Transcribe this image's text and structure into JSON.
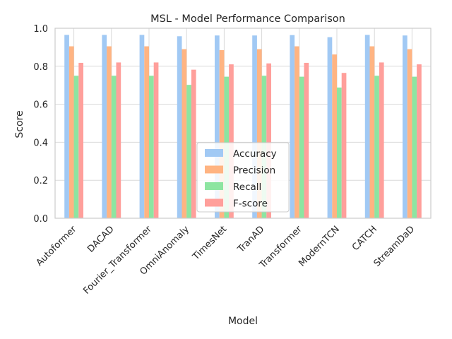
{
  "chart_data": {
    "type": "bar",
    "title": "MSL - Model Performance Comparison",
    "xlabel": "Model",
    "ylabel": "Score",
    "ylim": [
      0,
      1.0
    ],
    "yticks": [
      "0.0",
      "0.2",
      "0.4",
      "0.6",
      "0.8",
      "1.0"
    ],
    "grid": true,
    "legend_position": "lower center",
    "categories": [
      "Autoformer",
      "DACAD",
      "Fourier_Transformer",
      "OmniAnomaly",
      "TimesNet",
      "TranAD",
      "Transformer",
      "ModernTCN",
      "CATCH",
      "StreamDaD"
    ],
    "series": [
      {
        "name": "Accuracy",
        "color": "#a1c9f4",
        "values": [
          0.965,
          0.965,
          0.965,
          0.958,
          0.962,
          0.962,
          0.964,
          0.953,
          0.965,
          0.962
        ]
      },
      {
        "name": "Precision",
        "color": "#ffb482",
        "values": [
          0.905,
          0.905,
          0.905,
          0.89,
          0.885,
          0.89,
          0.905,
          0.862,
          0.905,
          0.89
        ]
      },
      {
        "name": "Recall",
        "color": "#8de5a1",
        "values": [
          0.75,
          0.75,
          0.75,
          0.702,
          0.745,
          0.75,
          0.745,
          0.688,
          0.75,
          0.745
        ]
      },
      {
        "name": "F-score",
        "color": "#ff9f9b",
        "values": [
          0.818,
          0.82,
          0.82,
          0.782,
          0.81,
          0.815,
          0.818,
          0.765,
          0.82,
          0.81
        ]
      }
    ]
  }
}
